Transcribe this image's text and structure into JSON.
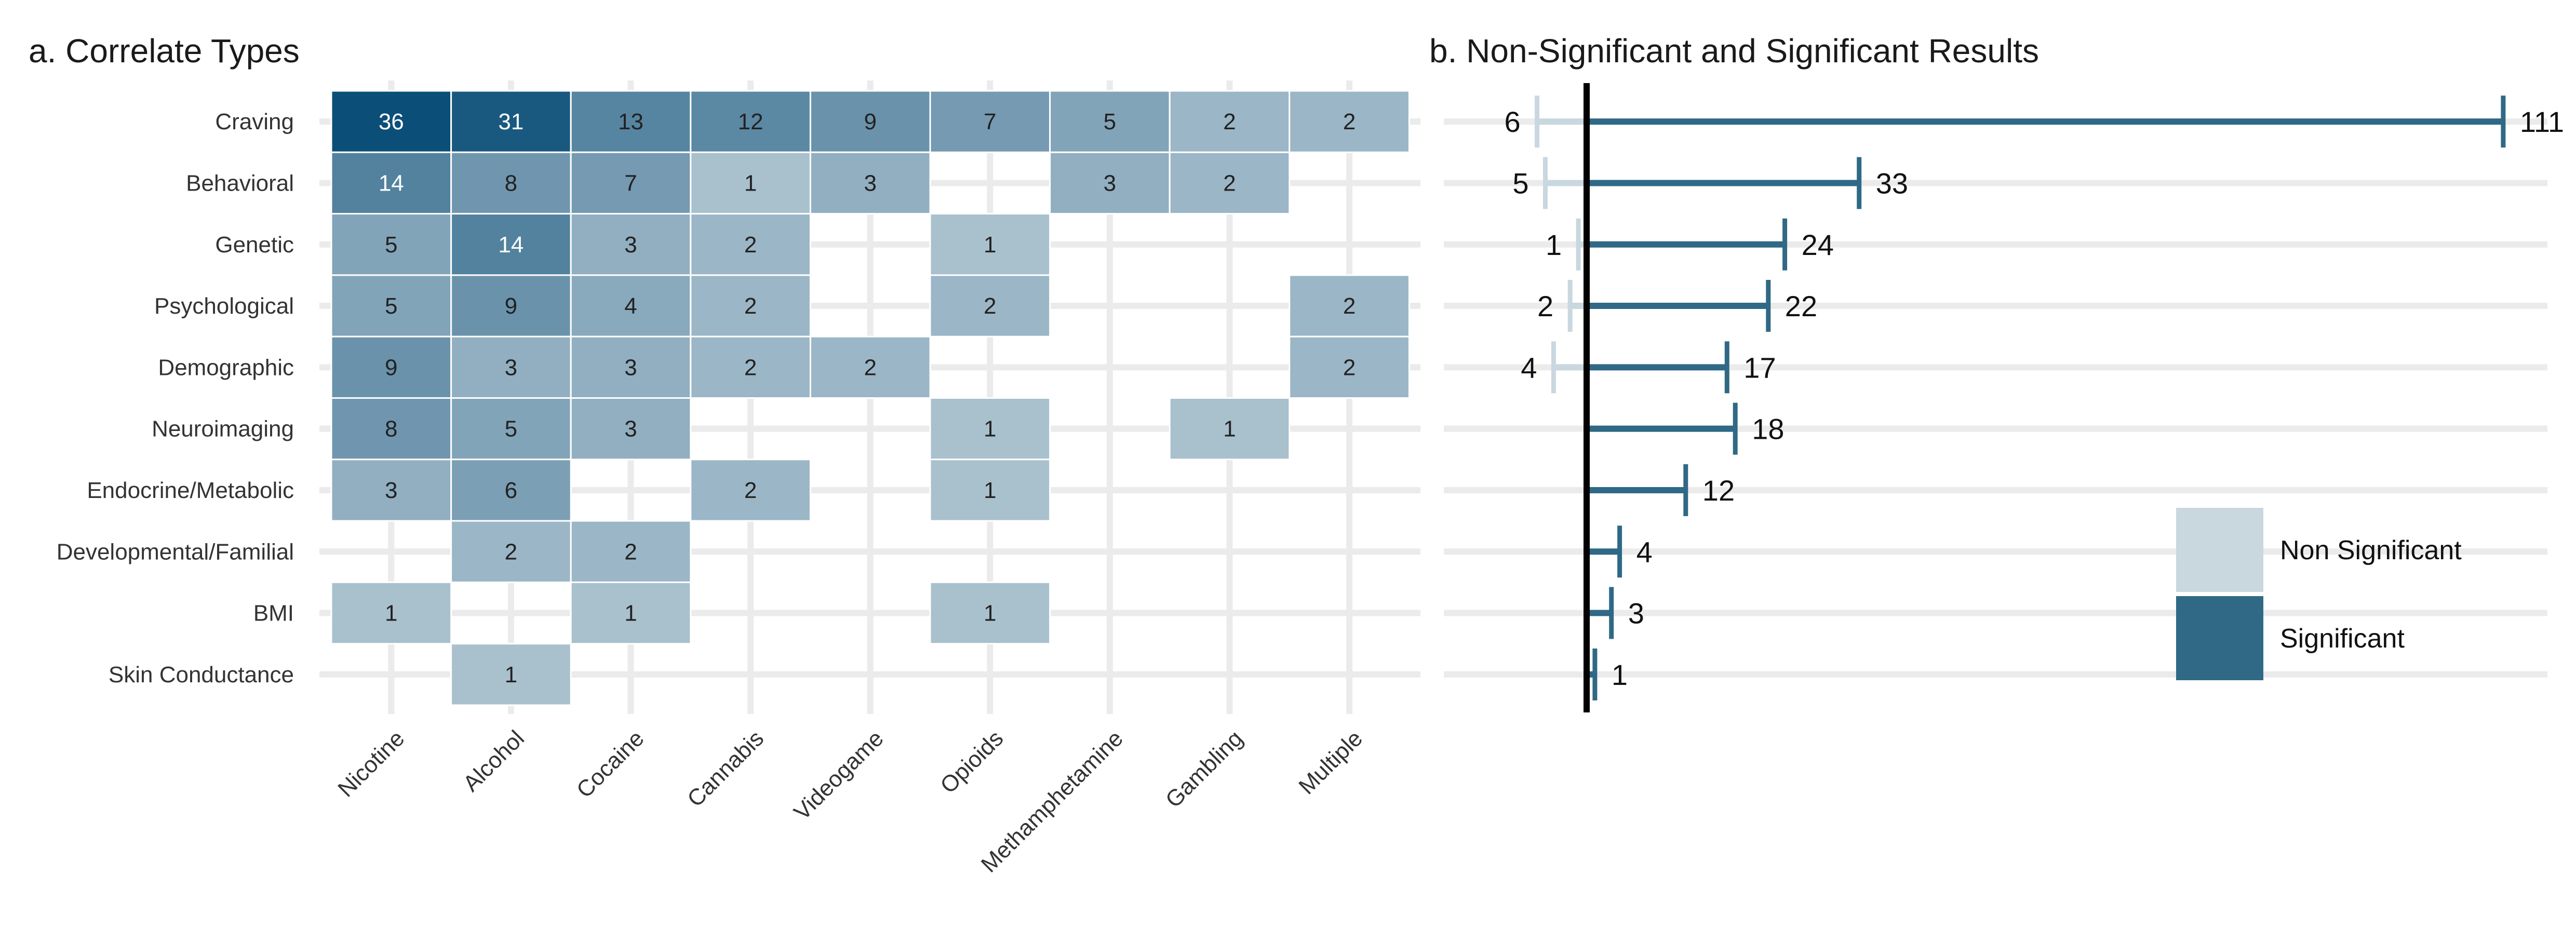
{
  "chart_data": [
    {
      "type": "heatmap",
      "title": "a. Correlate Types",
      "rows": [
        "Craving",
        "Behavioral",
        "Genetic",
        "Psychological",
        "Demographic",
        "Neuroimaging",
        "Endocrine/Metabolic",
        "Developmental/Familial",
        "BMI",
        "Skin Conductance"
      ],
      "columns": [
        "Nicotine",
        "Alcohol",
        "Cocaine",
        "Cannabis",
        "Videogame",
        "Opioids",
        "Methamphetamine",
        "Gambling",
        "Multiple"
      ],
      "values": [
        [
          36,
          31,
          13,
          12,
          9,
          7,
          5,
          2,
          2
        ],
        [
          14,
          8,
          7,
          1,
          3,
          null,
          3,
          2,
          null
        ],
        [
          5,
          14,
          3,
          2,
          null,
          1,
          null,
          null,
          null
        ],
        [
          5,
          9,
          4,
          2,
          null,
          2,
          null,
          null,
          2
        ],
        [
          9,
          3,
          3,
          2,
          2,
          null,
          null,
          null,
          2
        ],
        [
          8,
          5,
          3,
          null,
          null,
          1,
          null,
          1,
          null
        ],
        [
          3,
          6,
          null,
          2,
          null,
          1,
          null,
          null,
          null
        ],
        [
          null,
          2,
          2,
          null,
          null,
          null,
          null,
          null,
          null
        ],
        [
          1,
          null,
          1,
          null,
          null,
          1,
          null,
          null,
          null
        ],
        [
          null,
          1,
          null,
          null,
          null,
          null,
          null,
          null,
          null
        ]
      ],
      "color_low": "#c8d6de",
      "color_high": "#0b4f78",
      "grid": true
    },
    {
      "type": "bar",
      "title": "b. Non-Significant and Significant Results",
      "orientation": "horizontal-diverging",
      "categories": [
        "Craving",
        "Behavioral",
        "Genetic",
        "Psychological",
        "Demographic",
        "Neuroimaging",
        "Endocrine/Metabolic",
        "Developmental/Familial",
        "BMI",
        "Skin Conductance"
      ],
      "series": [
        {
          "name": "Non Significant",
          "values": [
            6,
            5,
            1,
            2,
            4,
            0,
            0,
            0,
            0,
            0
          ],
          "color": "#c9d7df",
          "direction": "left"
        },
        {
          "name": "Significant",
          "values": [
            111,
            33,
            24,
            22,
            17,
            18,
            12,
            4,
            3,
            1
          ],
          "color": "#2f6986",
          "direction": "right"
        }
      ],
      "legend": {
        "position": "bottom-right",
        "items": [
          "Non Significant",
          "Significant"
        ]
      },
      "grid": true
    }
  ]
}
